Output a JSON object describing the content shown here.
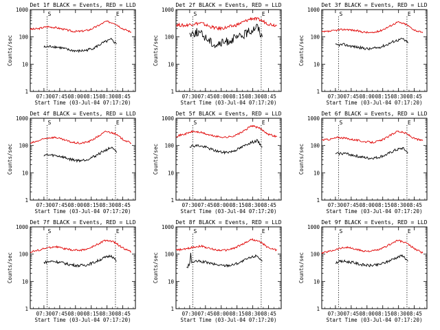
{
  "figure": {
    "panel_titles": [
      "Det 1f BLACK = Events, RED = LLD",
      "Det 2f BLACK = Events, RED = LLD",
      "Det 3f BLACK = Events, RED = LLD",
      "Det 4f BLACK = Events, RED = LLD",
      "Det 5f BLACK = Events, RED = LLD",
      "Det 6f BLACK = Events, RED = LLD",
      "Det 7f BLACK = Events, RED = LLD",
      "Det 8f BLACK = Events, RED = LLD",
      "Det 9f BLACK = Events, RED = LLD"
    ],
    "xlabel": "Start Time (03-Jul-04 07:17:20)",
    "ylabel": "Counts/sec",
    "x_ticks": [
      "07:30",
      "07:45",
      "08:00",
      "08:15",
      "08:30",
      "08:45"
    ],
    "y_ticks": [
      "1",
      "10",
      "100",
      "1000"
    ],
    "marker_start": "S",
    "marker_end": "E",
    "colors": {
      "events": "#000000",
      "lld": "#e00000",
      "axes": "#000000",
      "background": "#ffffff"
    }
  },
  "chart_data": [
    {
      "type": "line",
      "title": "Det 1f BLACK = Events, RED = LLD",
      "xlabel": "Start Time (03-Jul-04 07:17:20)",
      "ylabel": "Counts/sec",
      "yscale": "log",
      "ylim": [
        1,
        1000
      ],
      "xlim": [
        "07:17",
        "08:57"
      ],
      "x": [
        "07:17",
        "07:25",
        "07:33",
        "07:41",
        "07:49",
        "07:57",
        "08:05",
        "08:13",
        "08:21",
        "08:29",
        "08:37",
        "08:45",
        "08:53"
      ],
      "series": [
        {
          "name": "LLD",
          "color": "#e00000",
          "values": [
            190,
            200,
            240,
            220,
            190,
            160,
            160,
            180,
            250,
            370,
            320,
            200,
            150
          ]
        },
        {
          "name": "Events",
          "color": "#000000",
          "x": [
            "07:30",
            "07:38",
            "07:46",
            "07:54",
            "08:02",
            "08:10",
            "08:18",
            "08:26",
            "08:34",
            "08:39"
          ],
          "values": [
            42,
            45,
            40,
            33,
            30,
            32,
            40,
            60,
            80,
            55
          ]
        }
      ],
      "markers": {
        "start": "07:33",
        "end": "08:38"
      }
    },
    {
      "type": "line",
      "title": "Det 2f BLACK = Events, RED = LLD",
      "xlabel": "Start Time (03-Jul-04 07:17:20)",
      "ylabel": "Counts/sec",
      "yscale": "log",
      "ylim": [
        1,
        1000
      ],
      "xlim": [
        "07:17",
        "08:57"
      ],
      "x": [
        "07:17",
        "07:25",
        "07:33",
        "07:41",
        "07:49",
        "07:57",
        "08:05",
        "08:13",
        "08:21",
        "08:29",
        "08:37",
        "08:45",
        "08:53"
      ],
      "series": [
        {
          "name": "LLD",
          "color": "#e00000",
          "values": [
            280,
            260,
            300,
            320,
            240,
            200,
            220,
            260,
            350,
            480,
            420,
            300,
            260
          ]
        },
        {
          "name": "Events",
          "color": "#000000",
          "x": [
            "07:30",
            "07:38",
            "07:46",
            "07:54",
            "08:02",
            "08:10",
            "08:18",
            "08:26",
            "08:34",
            "08:39"
          ],
          "values": [
            130,
            150,
            90,
            50,
            60,
            80,
            100,
            150,
            250,
            100
          ]
        }
      ],
      "markers": {
        "start": "07:33",
        "end": "08:38"
      }
    },
    {
      "type": "line",
      "title": "Det 3f BLACK = Events, RED = LLD",
      "xlabel": "Start Time (03-Jul-04 07:17:20)",
      "ylabel": "Counts/sec",
      "yscale": "log",
      "ylim": [
        1,
        1000
      ],
      "xlim": [
        "07:17",
        "08:57"
      ],
      "x": [
        "07:17",
        "07:25",
        "07:33",
        "07:41",
        "07:49",
        "07:57",
        "08:05",
        "08:13",
        "08:21",
        "08:29",
        "08:37",
        "08:45",
        "08:53"
      ],
      "series": [
        {
          "name": "LLD",
          "color": "#e00000",
          "values": [
            150,
            160,
            180,
            190,
            170,
            150,
            140,
            170,
            240,
            350,
            290,
            180,
            140
          ]
        },
        {
          "name": "Events",
          "color": "#000000",
          "x": [
            "07:30",
            "07:38",
            "07:46",
            "07:54",
            "08:02",
            "08:10",
            "08:18",
            "08:26",
            "08:34",
            "08:39"
          ],
          "values": [
            50,
            52,
            45,
            40,
            36,
            40,
            50,
            70,
            85,
            60
          ]
        }
      ],
      "markers": {
        "start": "07:33",
        "end": "08:38"
      }
    },
    {
      "type": "line",
      "title": "Det 4f BLACK = Events, RED = LLD",
      "xlabel": "Start Time (03-Jul-04 07:17:20)",
      "ylabel": "Counts/sec",
      "yscale": "log",
      "ylim": [
        1,
        1000
      ],
      "xlim": [
        "07:17",
        "08:57"
      ],
      "x": [
        "07:17",
        "07:25",
        "07:33",
        "07:41",
        "07:49",
        "07:57",
        "08:05",
        "08:13",
        "08:21",
        "08:29",
        "08:37",
        "08:45",
        "08:53"
      ],
      "series": [
        {
          "name": "LLD",
          "color": "#e00000",
          "values": [
            120,
            150,
            190,
            200,
            160,
            130,
            120,
            140,
            210,
            330,
            280,
            170,
            120
          ]
        },
        {
          "name": "Events",
          "color": "#000000",
          "x": [
            "07:30",
            "07:38",
            "07:46",
            "07:54",
            "08:02",
            "08:10",
            "08:18",
            "08:26",
            "08:34",
            "08:39"
          ],
          "values": [
            45,
            44,
            40,
            32,
            28,
            30,
            40,
            60,
            85,
            55
          ]
        }
      ],
      "markers": {
        "start": "07:33",
        "end": "08:38"
      }
    },
    {
      "type": "line",
      "title": "Det 5f BLACK = Events, RED = LLD",
      "xlabel": "Start Time (03-Jul-04 07:17:20)",
      "ylabel": "Counts/sec",
      "yscale": "log",
      "ylim": [
        1,
        1000
      ],
      "xlim": [
        "07:17",
        "08:57"
      ],
      "x": [
        "07:17",
        "07:25",
        "07:33",
        "07:41",
        "07:49",
        "07:57",
        "08:05",
        "08:13",
        "08:21",
        "08:29",
        "08:37",
        "08:45",
        "08:53"
      ],
      "series": [
        {
          "name": "LLD",
          "color": "#e00000",
          "values": [
            220,
            260,
            330,
            300,
            240,
            210,
            200,
            230,
            330,
            540,
            420,
            260,
            210
          ]
        },
        {
          "name": "Events",
          "color": "#000000",
          "x": [
            "07:30",
            "07:38",
            "07:46",
            "07:54",
            "08:02",
            "08:10",
            "08:18",
            "08:26",
            "08:34",
            "08:39"
          ],
          "values": [
            95,
            100,
            85,
            65,
            55,
            60,
            80,
            120,
            150,
            90
          ]
        }
      ],
      "markers": {
        "start": "07:33",
        "end": "08:38"
      }
    },
    {
      "type": "line",
      "title": "Det 6f BLACK = Events, RED = LLD",
      "xlabel": "Start Time (03-Jul-04 07:17:20)",
      "ylabel": "Counts/sec",
      "yscale": "log",
      "ylim": [
        1,
        1000
      ],
      "xlim": [
        "07:17",
        "08:57"
      ],
      "x": [
        "07:17",
        "07:25",
        "07:33",
        "07:41",
        "07:49",
        "07:57",
        "08:05",
        "08:13",
        "08:21",
        "08:29",
        "08:37",
        "08:45",
        "08:53"
      ],
      "series": [
        {
          "name": "LLD",
          "color": "#e00000",
          "values": [
            160,
            170,
            200,
            180,
            160,
            140,
            130,
            150,
            220,
            340,
            280,
            180,
            150
          ]
        },
        {
          "name": "Events",
          "color": "#000000",
          "x": [
            "07:30",
            "07:38",
            "07:46",
            "07:54",
            "08:02",
            "08:10",
            "08:18",
            "08:26",
            "08:34",
            "08:39"
          ],
          "values": [
            50,
            52,
            45,
            38,
            34,
            36,
            45,
            65,
            80,
            55
          ]
        }
      ],
      "markers": {
        "start": "07:33",
        "end": "08:38"
      }
    },
    {
      "type": "line",
      "title": "Det 7f BLACK = Events, RED = LLD",
      "xlabel": "Start Time (03-Jul-04 07:17:20)",
      "ylabel": "Counts/sec",
      "yscale": "log",
      "ylim": [
        1,
        1000
      ],
      "xlim": [
        "07:17",
        "08:57"
      ],
      "x": [
        "07:17",
        "07:25",
        "07:33",
        "07:41",
        "07:49",
        "07:57",
        "08:05",
        "08:13",
        "08:21",
        "08:29",
        "08:37",
        "08:45",
        "08:53"
      ],
      "series": [
        {
          "name": "LLD",
          "color": "#e00000",
          "values": [
            120,
            140,
            170,
            190,
            160,
            140,
            140,
            160,
            230,
            330,
            270,
            170,
            120
          ]
        },
        {
          "name": "Events",
          "color": "#000000",
          "x": [
            "07:30",
            "07:38",
            "07:46",
            "07:54",
            "08:02",
            "08:10",
            "08:18",
            "08:26",
            "08:34",
            "08:39"
          ],
          "values": [
            50,
            55,
            50,
            42,
            38,
            40,
            50,
            70,
            90,
            55
          ]
        }
      ],
      "markers": {
        "start": "07:33",
        "end": "08:38"
      }
    },
    {
      "type": "line",
      "title": "Det 8f BLACK = Events, RED = LLD",
      "xlabel": "Start Time (03-Jul-04 07:17:20)",
      "ylabel": "Counts/sec",
      "yscale": "log",
      "ylim": [
        1,
        1000
      ],
      "xlim": [
        "07:17",
        "08:57"
      ],
      "x": [
        "07:17",
        "07:25",
        "07:33",
        "07:41",
        "07:49",
        "07:57",
        "08:05",
        "08:13",
        "08:21",
        "08:29",
        "08:37",
        "08:45",
        "08:53"
      ],
      "series": [
        {
          "name": "LLD",
          "color": "#e00000",
          "values": [
            140,
            150,
            180,
            200,
            160,
            140,
            140,
            170,
            240,
            350,
            280,
            170,
            140
          ]
        },
        {
          "name": "Events",
          "color": "#000000",
          "x": [
            "07:27",
            "07:30",
            "07:31",
            "07:32",
            "07:38",
            "07:46",
            "07:54",
            "08:02",
            "08:10",
            "08:18",
            "08:26",
            "08:34",
            "08:39"
          ],
          "values": [
            30,
            45,
            100,
            50,
            55,
            50,
            42,
            38,
            40,
            50,
            70,
            90,
            55
          ]
        }
      ],
      "markers": {
        "start": "07:33",
        "end": "08:38"
      }
    },
    {
      "type": "line",
      "title": "Det 9f BLACK = Events, RED = LLD",
      "xlabel": "Start Time (03-Jul-04 07:17:20)",
      "ylabel": "Counts/sec",
      "yscale": "log",
      "ylim": [
        1,
        1000
      ],
      "xlim": [
        "07:17",
        "08:57"
      ],
      "x": [
        "07:17",
        "07:25",
        "07:33",
        "07:41",
        "07:49",
        "07:57",
        "08:05",
        "08:13",
        "08:21",
        "08:29",
        "08:37",
        "08:45",
        "08:53"
      ],
      "series": [
        {
          "name": "LLD",
          "color": "#e00000",
          "values": [
            110,
            130,
            160,
            180,
            150,
            130,
            130,
            150,
            220,
            320,
            260,
            160,
            110
          ]
        },
        {
          "name": "Events",
          "color": "#000000",
          "x": [
            "07:30",
            "07:38",
            "07:46",
            "07:54",
            "08:02",
            "08:10",
            "08:18",
            "08:26",
            "08:34",
            "08:39"
          ],
          "values": [
            50,
            55,
            50,
            42,
            38,
            40,
            50,
            70,
            90,
            55
          ]
        }
      ],
      "markers": {
        "start": "07:33",
        "end": "08:38"
      }
    }
  ]
}
